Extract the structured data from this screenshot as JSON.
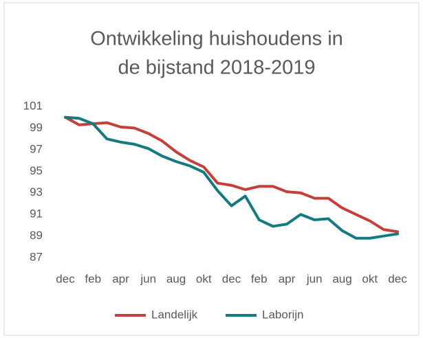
{
  "chart_data": {
    "type": "line",
    "title": [
      "Ontwikkeling huishoudens in",
      "de bijstand 2018-2019"
    ],
    "categories": [
      "dec",
      null,
      "feb",
      null,
      "apr",
      null,
      "jun",
      null,
      "aug",
      null,
      "okt",
      null,
      "dec",
      null,
      "feb",
      null,
      "apr",
      null,
      "jun",
      null,
      "aug",
      null,
      "okt",
      null,
      "dec"
    ],
    "series": [
      {
        "name": "Landelijk",
        "color": "#c4403a",
        "values": [
          100,
          99.3,
          99.4,
          99.5,
          99.1,
          99.0,
          98.5,
          97.8,
          96.8,
          96.0,
          95.4,
          93.9,
          93.7,
          93.3,
          93.6,
          93.6,
          93.1,
          93.0,
          92.5,
          92.5,
          91.6,
          91.0,
          90.4,
          89.6,
          89.4
        ]
      },
      {
        "name": "Laborijn",
        "color": "#137a7f",
        "values": [
          100,
          99.9,
          99.4,
          98.0,
          97.7,
          97.5,
          97.1,
          96.4,
          95.9,
          95.5,
          94.9,
          93.2,
          91.8,
          92.7,
          90.5,
          89.9,
          90.1,
          91.0,
          90.5,
          90.6,
          89.5,
          88.8,
          88.8,
          89.0,
          89.2
        ]
      }
    ],
    "ylim": [
      87,
      101
    ],
    "yticks": [
      87,
      89,
      91,
      93,
      95,
      97,
      99,
      101
    ],
    "grid": false,
    "legend": "bottom"
  }
}
